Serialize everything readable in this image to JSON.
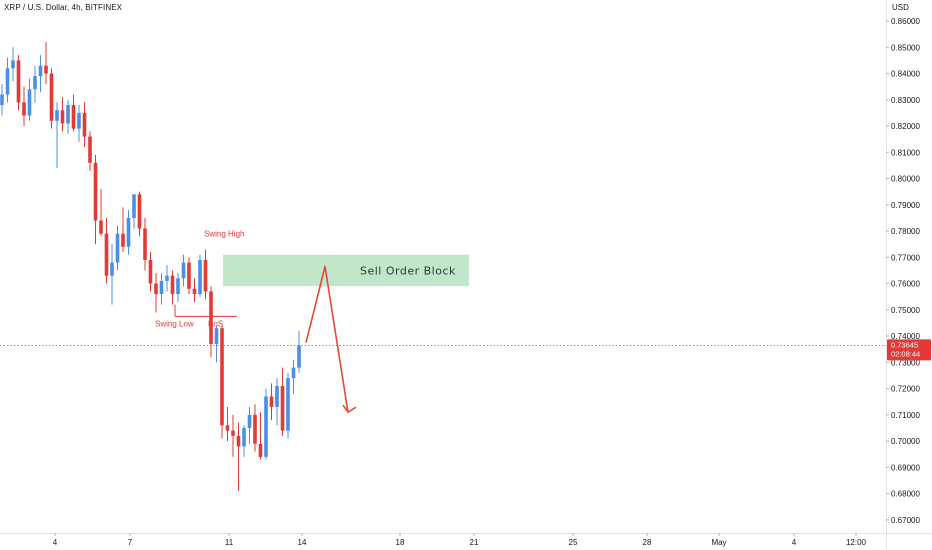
{
  "header": {
    "symbol_title": "XRP / U.S. Dollar, 4h, BITFINEX",
    "currency": "USD"
  },
  "colors": {
    "up": "#4a8fe7",
    "down": "#e53935",
    "zone_fill": "#b9e2c1",
    "annotation": "#e53935",
    "arrow": "#e8473a",
    "price_line": "#e53935"
  },
  "chart_data": {
    "type": "candlestick",
    "ylim": [
      0.665,
      0.868
    ],
    "yticks": [
      "0.86000",
      "0.85000",
      "0.84000",
      "0.83000",
      "0.82000",
      "0.81000",
      "0.80000",
      "0.79000",
      "0.78000",
      "0.77000",
      "0.76000",
      "0.75000",
      "0.74000",
      "0.73000",
      "0.72000",
      "0.71000",
      "0.70000",
      "0.69000",
      "0.68000",
      "0.67000"
    ],
    "xticks": [
      "4",
      "7",
      "11",
      "14",
      "18",
      "21",
      "25",
      "28",
      "May",
      "4",
      "12:00"
    ],
    "candles": [
      [
        0.828,
        0.836,
        0.824,
        0.832
      ],
      [
        0.832,
        0.846,
        0.829,
        0.842
      ],
      [
        0.842,
        0.85,
        0.837,
        0.845
      ],
      [
        0.845,
        0.847,
        0.826,
        0.829
      ],
      [
        0.829,
        0.835,
        0.82,
        0.824
      ],
      [
        0.824,
        0.838,
        0.822,
        0.834
      ],
      [
        0.834,
        0.843,
        0.829,
        0.839
      ],
      [
        0.839,
        0.847,
        0.833,
        0.843
      ],
      [
        0.843,
        0.852,
        0.836,
        0.84
      ],
      [
        0.84,
        0.842,
        0.819,
        0.822
      ],
      [
        0.822,
        0.829,
        0.804,
        0.826
      ],
      [
        0.826,
        0.831,
        0.818,
        0.821
      ],
      [
        0.821,
        0.83,
        0.817,
        0.828
      ],
      [
        0.828,
        0.832,
        0.818,
        0.819
      ],
      [
        0.819,
        0.828,
        0.814,
        0.825
      ],
      [
        0.825,
        0.829,
        0.812,
        0.816
      ],
      [
        0.816,
        0.818,
        0.803,
        0.806
      ],
      [
        0.806,
        0.809,
        0.775,
        0.784
      ],
      [
        0.784,
        0.796,
        0.778,
        0.779
      ],
      [
        0.779,
        0.785,
        0.76,
        0.763
      ],
      [
        0.763,
        0.775,
        0.752,
        0.768
      ],
      [
        0.768,
        0.782,
        0.765,
        0.779
      ],
      [
        0.779,
        0.789,
        0.772,
        0.774
      ],
      [
        0.774,
        0.788,
        0.771,
        0.785
      ],
      [
        0.785,
        0.794,
        0.781,
        0.794
      ],
      [
        0.794,
        0.795,
        0.778,
        0.781
      ],
      [
        0.781,
        0.785,
        0.765,
        0.769
      ],
      [
        0.769,
        0.772,
        0.757,
        0.76
      ],
      [
        0.76,
        0.764,
        0.749,
        0.756
      ],
      [
        0.756,
        0.764,
        0.752,
        0.761
      ],
      [
        0.761,
        0.767,
        0.757,
        0.763
      ],
      [
        0.763,
        0.765,
        0.752,
        0.756
      ],
      [
        0.756,
        0.764,
        0.753,
        0.762
      ],
      [
        0.762,
        0.771,
        0.759,
        0.768
      ],
      [
        0.768,
        0.77,
        0.756,
        0.758
      ],
      [
        0.758,
        0.762,
        0.753,
        0.756
      ],
      [
        0.756,
        0.771,
        0.755,
        0.769
      ],
      [
        0.769,
        0.773,
        0.754,
        0.757
      ],
      [
        0.757,
        0.759,
        0.732,
        0.737
      ],
      [
        0.737,
        0.744,
        0.73,
        0.743
      ],
      [
        0.743,
        0.744,
        0.701,
        0.706
      ],
      [
        0.706,
        0.713,
        0.7,
        0.704
      ],
      [
        0.704,
        0.71,
        0.694,
        0.702
      ],
      [
        0.702,
        0.707,
        0.681,
        0.698
      ],
      [
        0.698,
        0.706,
        0.694,
        0.705
      ],
      [
        0.705,
        0.713,
        0.699,
        0.71
      ],
      [
        0.71,
        0.714,
        0.696,
        0.699
      ],
      [
        0.699,
        0.711,
        0.693,
        0.694
      ],
      [
        0.694,
        0.72,
        0.693,
        0.717
      ],
      [
        0.717,
        0.722,
        0.708,
        0.713
      ],
      [
        0.713,
        0.724,
        0.706,
        0.721
      ],
      [
        0.721,
        0.728,
        0.702,
        0.704
      ],
      [
        0.704,
        0.726,
        0.701,
        0.724
      ],
      [
        0.724,
        0.731,
        0.718,
        0.728
      ],
      [
        0.728,
        0.742,
        0.726,
        0.7364
      ]
    ],
    "current_price": "0.73645",
    "countdown": "02:08:44",
    "zone": {
      "label": "Sell Order Block",
      "top": 0.771,
      "bottom": 0.759
    },
    "annotations": {
      "swing_high": "Swing High",
      "swing_low": "Swing Low",
      "bos": "BoS"
    }
  }
}
